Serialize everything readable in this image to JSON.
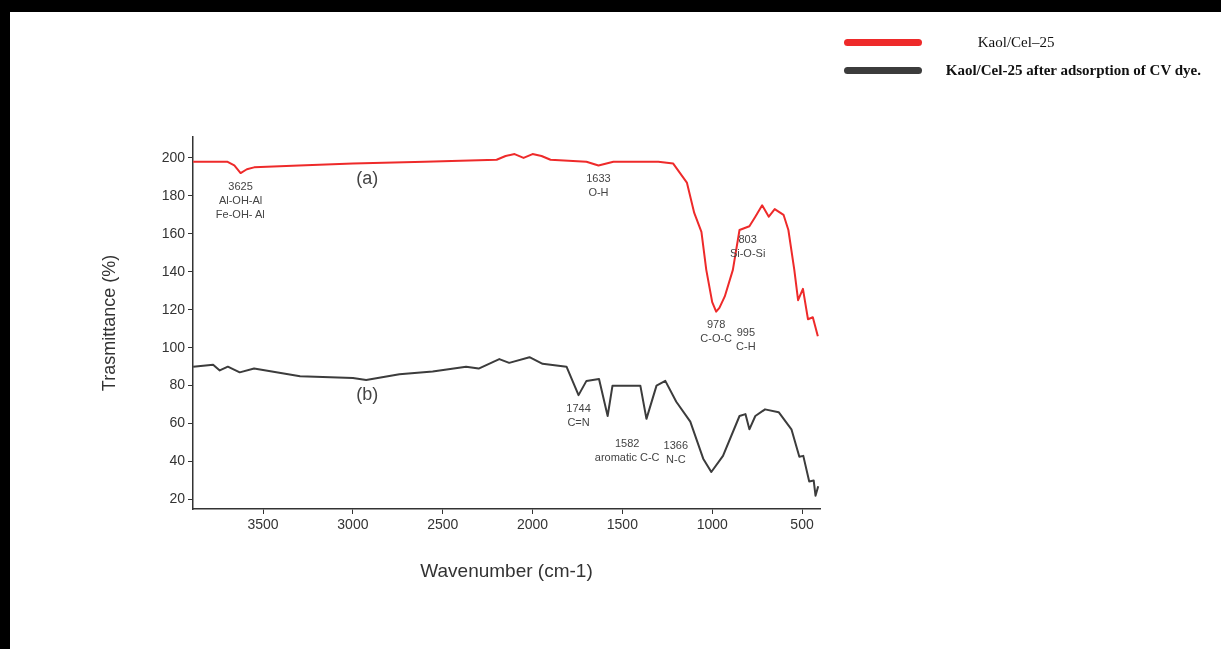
{
  "chart_data": {
    "type": "line",
    "xlabel": "Wavenumber (cm-1)",
    "ylabel": "Trasmittance (%)",
    "xlim": [
      3890,
      400
    ],
    "xticks": [
      3500,
      3000,
      2500,
      2000,
      1500,
      1000,
      500
    ],
    "ylim": [
      15,
      211
    ],
    "yticks": [
      20,
      40,
      60,
      80,
      100,
      120,
      140,
      160,
      180,
      200
    ],
    "grid": false,
    "legend": "top right",
    "marker": "none",
    "line_style": "solid",
    "series": [
      {
        "name": "Kaol/Cel–25",
        "color": "#ee2a2a",
        "x": [
          3889,
          3700,
          3660,
          3625,
          3590,
          3550,
          3300,
          3000,
          2600,
          2200,
          2150,
          2100,
          2050,
          2000,
          1950,
          1900,
          1700,
          1633,
          1550,
          1300,
          1217,
          1141,
          1100,
          1060,
          1033,
          1000,
          978,
          960,
          930,
          885,
          848,
          793,
          760,
          722,
          685,
          652,
          603,
          576,
          543,
          522,
          495,
          467,
          440,
          423,
          412
        ],
        "values": [
          198,
          198,
          196,
          192,
          194,
          195,
          196,
          197,
          198,
          199,
          201,
          202,
          200,
          202,
          201,
          199,
          198,
          196,
          198,
          198,
          197,
          187,
          171,
          161,
          141,
          124,
          119,
          121,
          127,
          141,
          162,
          164,
          169,
          175,
          169,
          173,
          170,
          162,
          141,
          125,
          131,
          115,
          116,
          110,
          106
        ]
      },
      {
        "name": "Kaol/Cel-25 after adsorption of CV dye.",
        "color": "#3c3c3c",
        "x": [
          3889,
          3778,
          3741,
          3696,
          3630,
          3550,
          3294,
          3000,
          2926,
          2741,
          2556,
          2370,
          2300,
          2185,
          2130,
          2017,
          1944,
          1811,
          1744,
          1700,
          1630,
          1582,
          1555,
          1400,
          1366,
          1310,
          1261,
          1200,
          1122,
          1050,
          1005,
          940,
          848,
          815,
          793,
          760,
          706,
          630,
          559,
          515,
          493,
          460,
          435,
          425,
          410
        ],
        "values": [
          90,
          91,
          88,
          90,
          87,
          89,
          85,
          84,
          83,
          86,
          87.5,
          90,
          89,
          94,
          92,
          95,
          91.5,
          90,
          75,
          82.5,
          83.5,
          64,
          80,
          80,
          62.5,
          80,
          82.5,
          71.5,
          61,
          41.5,
          34.5,
          43,
          64,
          65,
          57,
          64,
          67.5,
          66,
          57,
          42.5,
          43,
          29.5,
          30,
          22,
          27
        ]
      }
    ],
    "annotations": [
      {
        "text": "(a)",
        "x": 2920,
        "y": 197
      },
      {
        "text": "3625\nAl-OH-Al\nFe-OH- Al",
        "x": 3625,
        "y": 192
      },
      {
        "text": "1633\nO-H",
        "x": 1633,
        "y": 196
      },
      {
        "text": "978\nC-O-C",
        "x": 978,
        "y": 119
      },
      {
        "text": "995\nC-H",
        "x": 995,
        "y": 122
      },
      {
        "text": "803\nSi-O-Si",
        "x": 803,
        "y": 164
      },
      {
        "text": "(b)",
        "x": 2920,
        "y": 83
      },
      {
        "text": "1744\nC=N",
        "x": 1744,
        "y": 75
      },
      {
        "text": "1582\naromatic C-C",
        "x": 1582,
        "y": 64
      },
      {
        "text": "1366\nN-C",
        "x": 1366,
        "y": 62.5
      }
    ]
  }
}
